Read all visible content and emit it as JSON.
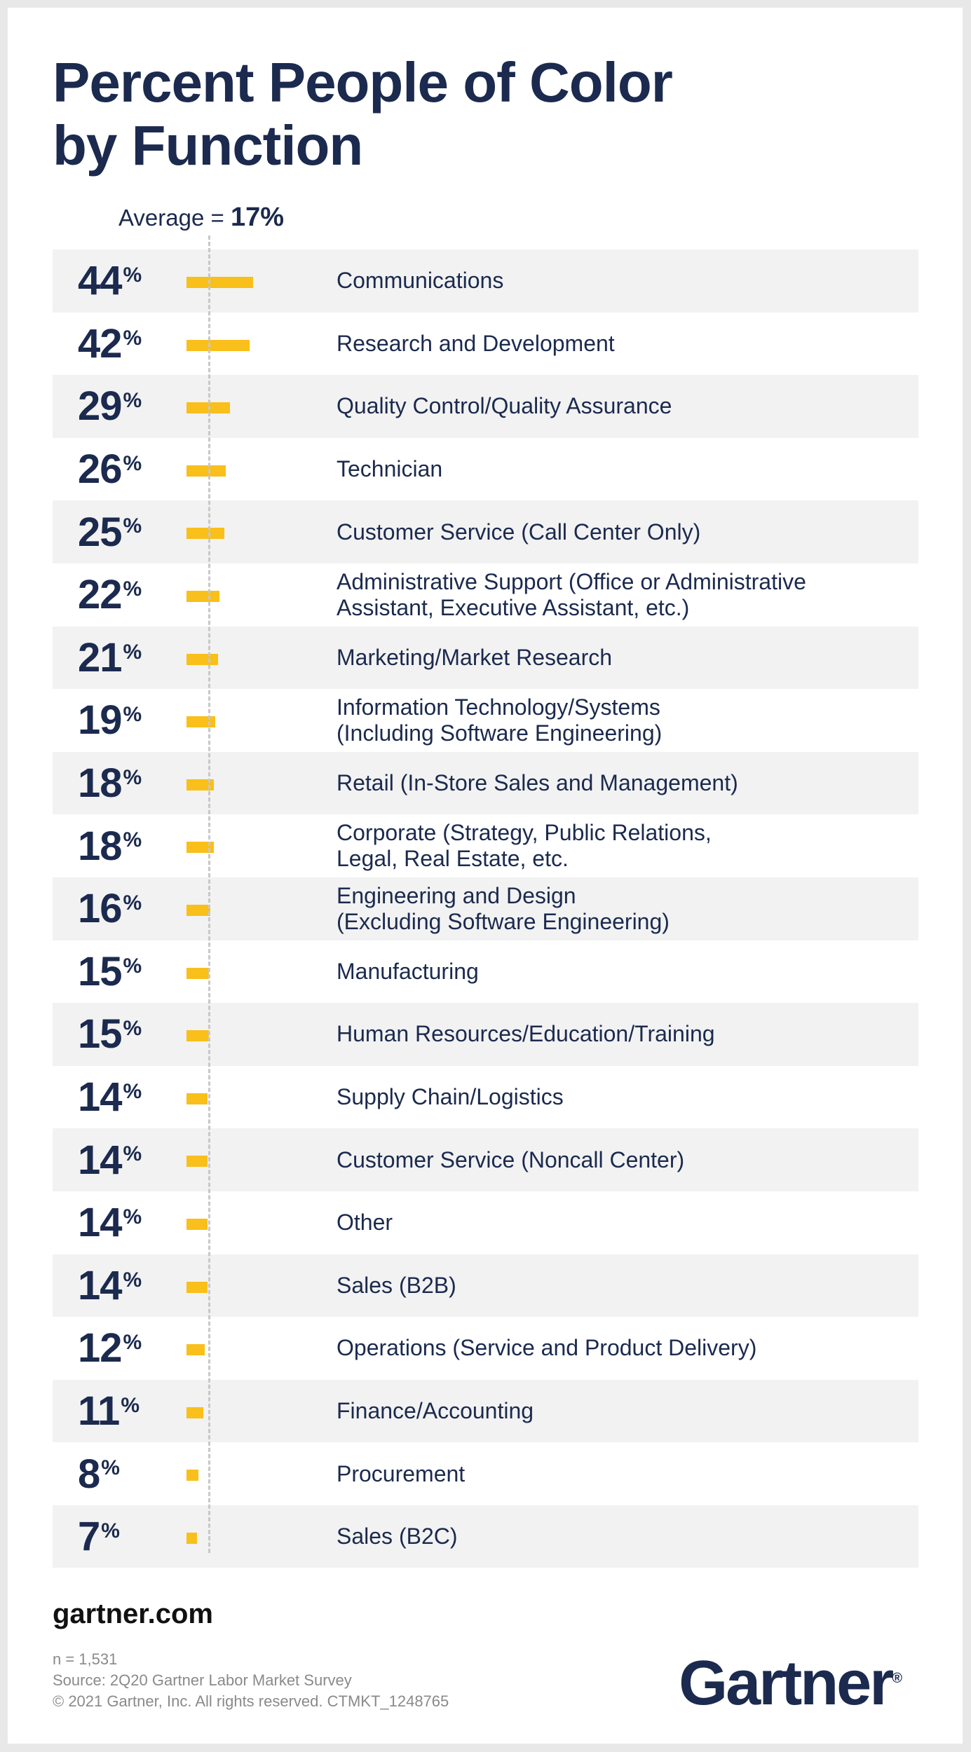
{
  "title": "Percent People of Color\nby Function",
  "average": {
    "label": "Average = ",
    "value": "17%",
    "value_num": 17
  },
  "colors": {
    "navy": "#1b2a4e",
    "bar": "#f9bf1a",
    "shade": "#f2f2f2"
  },
  "chart_data": {
    "type": "bar",
    "orientation": "horizontal",
    "unit": "%",
    "reference_line": 17,
    "categories": [
      "Communications",
      "Research and Development",
      "Quality Control/Quality Assurance",
      "Technician",
      "Customer Service (Call Center Only)",
      "Administrative Support (Office or Administrative\nAssistant, Executive Assistant, etc.)",
      "Marketing/Market Research",
      "Information Technology/Systems\n(Including Software Engineering)",
      "Retail (In-Store Sales and Management)",
      "Corporate (Strategy, Public Relations,\nLegal, Real Estate, etc.",
      "Engineering and Design\n(Excluding Software Engineering)",
      "Manufacturing",
      "Human Resources/Education/Training",
      "Supply Chain/Logistics",
      "Customer Service (Noncall Center)",
      "Other",
      "Sales (B2B)",
      "Operations (Service and Product Delivery)",
      "Finance/Accounting",
      "Procurement",
      "Sales (B2C)"
    ],
    "values": [
      44,
      42,
      29,
      26,
      25,
      22,
      21,
      19,
      18,
      18,
      16,
      15,
      15,
      14,
      14,
      14,
      14,
      12,
      11,
      8,
      7
    ]
  },
  "footer": {
    "site": "gartner.com",
    "n": "n = 1,531",
    "source": "Source: 2Q20 Gartner Labor Market Survey",
    "copyright": "© 2021 Gartner, Inc. All rights reserved. CTMKT_1248765",
    "logo": "Gartner"
  }
}
